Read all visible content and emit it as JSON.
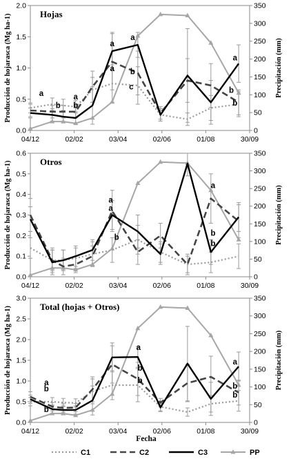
{
  "x_axis_label": "Fecha",
  "legend": [
    {
      "key": "C1",
      "label": "C1"
    },
    {
      "key": "C2",
      "label": "C2"
    },
    {
      "key": "C3",
      "label": "C3"
    },
    {
      "key": "PP",
      "label": "PP"
    }
  ],
  "colors": {
    "C1": "#999999",
    "C2": "#444444",
    "C3": "#000000",
    "PP": "#a6a6a6",
    "errorbar": "#9a9a9a"
  },
  "chart_data": [
    {
      "type": "line",
      "title": "Hojas",
      "ylabel": "Producción de hojarasca (Mg ha-1)",
      "y2label": "Precipitación (mm)",
      "ylim": [
        0,
        2.0
      ],
      "yticks": [
        "0.0",
        "0.5",
        "1.0",
        "1.5",
        "2.0"
      ],
      "y2lim": [
        0,
        350
      ],
      "y2ticks": [
        "0",
        "50",
        "100",
        "150",
        "200",
        "250",
        "300",
        "350"
      ],
      "xlim": [
        0,
        300
      ],
      "xticks": [
        {
          "x": 0,
          "label": "04/12"
        },
        {
          "x": 60,
          "label": "02/02"
        },
        {
          "x": 120,
          "label": "03/04"
        },
        {
          "x": 180,
          "label": "02/06"
        },
        {
          "x": 240,
          "label": "01/08"
        },
        {
          "x": 300,
          "label": "30/09"
        }
      ],
      "x": [
        0,
        30,
        45,
        62,
        85,
        112,
        147,
        178,
        215,
        247,
        285
      ],
      "series": [
        {
          "name": "C1",
          "values": [
            0.36,
            0.42,
            0.4,
            0.38,
            0.65,
            0.75,
            0.72,
            0.25,
            0.18,
            0.36,
            0.42
          ],
          "err": [
            0.08,
            0.1,
            0.1,
            0.1,
            0.2,
            0.3,
            0.3,
            0.1,
            0.1,
            0.2,
            0.2
          ]
        },
        {
          "name": "C2",
          "values": [
            0.32,
            0.3,
            0.3,
            0.3,
            0.7,
            1.1,
            0.92,
            0.28,
            0.8,
            0.72,
            0.45
          ],
          "err": [
            0.1,
            0.1,
            0.1,
            0.1,
            0.25,
            0.45,
            0.35,
            0.1,
            0.35,
            0.35,
            0.2
          ]
        },
        {
          "name": "C3",
          "values": [
            0.28,
            0.25,
            0.22,
            0.2,
            0.4,
            1.27,
            1.37,
            0.25,
            0.88,
            0.45,
            1.07
          ],
          "err": [
            0.08,
            0.1,
            0.1,
            0.1,
            0.3,
            0.3,
            0.2,
            0.1,
            0.75,
            0.35,
            0.3
          ]
        },
        {
          "name": "PP",
          "axis": "right",
          "values": [
            5,
            25,
            25,
            20,
            35,
            80,
            265,
            325,
            322,
            245,
            105
          ]
        }
      ],
      "labels": [
        {
          "x": 15,
          "y": 0.55,
          "text": "a"
        },
        {
          "x": 38,
          "y": 0.36,
          "text": "b"
        },
        {
          "x": 62,
          "y": 0.5,
          "text": "a"
        },
        {
          "x": 62,
          "y": 0.36,
          "text": "b"
        },
        {
          "x": 112,
          "y": 1.35,
          "text": "a"
        },
        {
          "x": 112,
          "y": 0.95,
          "text": "a"
        },
        {
          "x": 140,
          "y": 1.45,
          "text": "a"
        },
        {
          "x": 140,
          "y": 0.9,
          "text": "b"
        },
        {
          "x": 138,
          "y": 0.66,
          "text": "c"
        },
        {
          "x": 280,
          "y": 1.12,
          "text": "a"
        },
        {
          "x": 275,
          "y": 0.6,
          "text": "b"
        },
        {
          "x": 280,
          "y": 0.4,
          "text": "b"
        }
      ]
    },
    {
      "type": "line",
      "title": "Otros",
      "ylabel": "Producción de hojarasca (Mg ha-1)",
      "y2label": "Precipitación (mm)",
      "ylim": [
        0,
        0.6
      ],
      "yticks": [
        "0.0",
        "0.1",
        "0.2",
        "0.3",
        "0.4",
        "0.5",
        "0.6"
      ],
      "y2lim": [
        0,
        350
      ],
      "y2ticks": [
        "0",
        "50",
        "100",
        "150",
        "200",
        "250",
        "300",
        "350"
      ],
      "xlim": [
        0,
        300
      ],
      "xticks": [
        {
          "x": 0,
          "label": "04/12"
        },
        {
          "x": 60,
          "label": "02/02"
        },
        {
          "x": 120,
          "label": "03/04"
        },
        {
          "x": 180,
          "label": "02/06"
        },
        {
          "x": 240,
          "label": "01/08"
        },
        {
          "x": 300,
          "label": "30/09"
        }
      ],
      "x": [
        0,
        30,
        45,
        62,
        85,
        112,
        147,
        178,
        215,
        247,
        285
      ],
      "series": [
        {
          "name": "C1",
          "values": [
            0.14,
            0.08,
            0.08,
            0.09,
            0.11,
            0.13,
            0.18,
            0.12,
            0.06,
            0.07,
            0.1
          ],
          "err": [
            0.05,
            0.05,
            0.05,
            0.05,
            0.06,
            0.06,
            0.07,
            0.05,
            0.05,
            0.05,
            0.06
          ]
        },
        {
          "name": "C2",
          "values": [
            0.3,
            0.08,
            0.05,
            0.06,
            0.1,
            0.32,
            0.12,
            0.2,
            0.06,
            0.38,
            0.27
          ],
          "err": [
            0.08,
            0.06,
            0.04,
            0.04,
            0.05,
            0.1,
            0.06,
            0.06,
            0.04,
            0.12,
            0.08
          ]
        },
        {
          "name": "C3",
          "values": [
            0.28,
            0.07,
            0.08,
            0.1,
            0.13,
            0.3,
            0.22,
            0.11,
            0.55,
            0.12,
            0.29
          ],
          "err": [
            0.06,
            0.06,
            0.05,
            0.05,
            0.05,
            0.07,
            0.08,
            0.05,
            0.06,
            0.06,
            0.07
          ]
        },
        {
          "name": "PP",
          "axis": "right",
          "values": [
            5,
            25,
            25,
            20,
            35,
            80,
            265,
            325,
            322,
            245,
            105
          ]
        }
      ],
      "labels": [
        {
          "x": 110,
          "y": 0.36,
          "text": "a"
        },
        {
          "x": 110,
          "y": 0.32,
          "text": "a"
        },
        {
          "x": 118,
          "y": 0.18,
          "text": "b"
        },
        {
          "x": 250,
          "y": 0.43,
          "text": "a"
        },
        {
          "x": 250,
          "y": 0.2,
          "text": "b"
        },
        {
          "x": 250,
          "y": 0.15,
          "text": "b"
        }
      ]
    },
    {
      "type": "line",
      "title": "Total (hojas + Otros)",
      "ylabel": "Producción de hojarasca (Mg ha-1)",
      "y2label": "Precipitación (mm)",
      "ylim": [
        0,
        3.0
      ],
      "yticks": [
        "0.0",
        "0.5",
        "1.0",
        "1.5",
        "2.0",
        "2.5",
        "3.0"
      ],
      "y2lim": [
        0,
        350
      ],
      "y2ticks": [
        "0",
        "50",
        "100",
        "150",
        "200",
        "250",
        "300",
        "350"
      ],
      "xlim": [
        0,
        300
      ],
      "xticks": [
        {
          "x": 0,
          "label": "04/12"
        },
        {
          "x": 60,
          "label": "02/02"
        },
        {
          "x": 120,
          "label": "03/04"
        },
        {
          "x": 180,
          "label": "02/06"
        },
        {
          "x": 240,
          "label": "01/08"
        },
        {
          "x": 300,
          "label": "30/09"
        }
      ],
      "x": [
        0,
        30,
        45,
        62,
        85,
        112,
        147,
        178,
        215,
        247,
        285
      ],
      "series": [
        {
          "name": "C1",
          "values": [
            0.5,
            0.5,
            0.48,
            0.47,
            0.75,
            0.9,
            0.9,
            0.38,
            0.25,
            0.45,
            0.52
          ],
          "err": [
            0.1,
            0.1,
            0.1,
            0.1,
            0.3,
            0.35,
            0.4,
            0.1,
            0.1,
            0.2,
            0.25
          ]
        },
        {
          "name": "C2",
          "values": [
            0.62,
            0.38,
            0.35,
            0.36,
            0.8,
            1.4,
            1.05,
            0.48,
            0.95,
            1.1,
            0.72
          ],
          "err": [
            0.12,
            0.1,
            0.1,
            0.1,
            0.3,
            0.45,
            0.4,
            0.1,
            0.45,
            0.5,
            0.3
          ]
        },
        {
          "name": "C3",
          "values": [
            0.56,
            0.32,
            0.3,
            0.3,
            0.53,
            1.57,
            1.58,
            0.36,
            1.42,
            0.57,
            1.35
          ],
          "err": [
            0.1,
            0.1,
            0.1,
            0.1,
            0.35,
            0.35,
            0.25,
            0.1,
            0.9,
            0.4,
            0.35
          ]
        },
        {
          "name": "PP",
          "axis": "right",
          "values": [
            5,
            25,
            25,
            20,
            35,
            80,
            265,
            325,
            322,
            245,
            105
          ]
        }
      ],
      "labels": [
        {
          "x": 22,
          "y": 0.9,
          "text": "a"
        },
        {
          "x": 22,
          "y": 0.75,
          "text": "b"
        },
        {
          "x": 22,
          "y": 0.25,
          "text": "b"
        },
        {
          "x": 148,
          "y": 1.75,
          "text": "a"
        },
        {
          "x": 150,
          "y": 1.25,
          "text": "b"
        },
        {
          "x": 150,
          "y": 0.95,
          "text": "b"
        },
        {
          "x": 280,
          "y": 1.4,
          "text": "a"
        },
        {
          "x": 280,
          "y": 0.82,
          "text": "b"
        },
        {
          "x": 280,
          "y": 0.6,
          "text": "b"
        }
      ]
    }
  ]
}
